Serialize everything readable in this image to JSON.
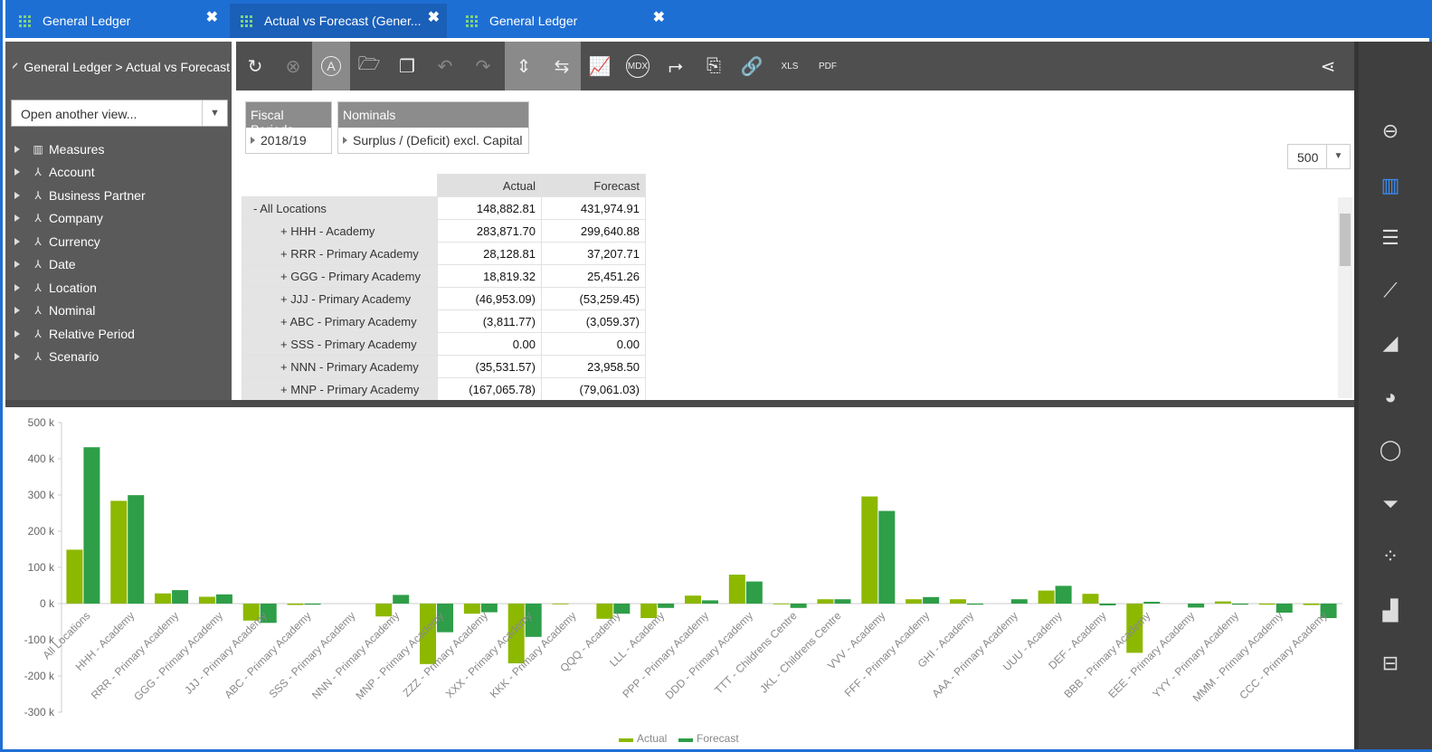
{
  "tabs": [
    {
      "label": "General Ledger",
      "close": "✖"
    },
    {
      "label": "Actual vs Forecast (Gener...",
      "close": "✖"
    },
    {
      "label": "General Ledger",
      "close": "✖"
    }
  ],
  "sidebar": {
    "breadcrumb": "General Ledger > Actual vs Forecast",
    "view_select_placeholder": "Open another view...",
    "dimensions": [
      {
        "label": "Measures",
        "icon": "measures-icon"
      },
      {
        "label": "Account",
        "icon": "hierarchy-icon"
      },
      {
        "label": "Business Partner",
        "icon": "hierarchy-icon"
      },
      {
        "label": "Company",
        "icon": "hierarchy-icon"
      },
      {
        "label": "Currency",
        "icon": "hierarchy-icon"
      },
      {
        "label": "Date",
        "icon": "hierarchy-icon"
      },
      {
        "label": "Location",
        "icon": "hierarchy-icon"
      },
      {
        "label": "Nominal",
        "icon": "hierarchy-icon"
      },
      {
        "label": "Relative Period",
        "icon": "hierarchy-icon"
      },
      {
        "label": "Scenario",
        "icon": "hierarchy-icon"
      }
    ]
  },
  "toolbar": {
    "mdx": "MDX",
    "xls": "XLS",
    "pdf": "PDF",
    "a": "A"
  },
  "filters": [
    {
      "header": "Fiscal Periods",
      "value": "2018/19"
    },
    {
      "header": "Nominals",
      "value": "Surplus / (Deficit) excl. Capital"
    }
  ],
  "page_size": "500",
  "table": {
    "columns": [
      "Actual",
      "Forecast"
    ],
    "rows": [
      {
        "label": "- All Locations",
        "actual": "148,882.81",
        "forecast": "431,974.91"
      },
      {
        "label": "+ HHH - Academy",
        "actual": "283,871.70",
        "forecast": "299,640.88"
      },
      {
        "label": "+ RRR - Primary Academy",
        "actual": "28,128.81",
        "forecast": "37,207.71"
      },
      {
        "label": "+ GGG - Primary Academy",
        "actual": "18,819.32",
        "forecast": "25,451.26"
      },
      {
        "label": "+ JJJ - Primary Academy",
        "actual": "(46,953.09)",
        "forecast": "(53,259.45)"
      },
      {
        "label": "+ ABC - Primary Academy",
        "actual": "(3,811.77)",
        "forecast": "(3,059.37)"
      },
      {
        "label": "+ SSS - Primary Academy",
        "actual": "0.00",
        "forecast": "0.00"
      },
      {
        "label": "+ NNN - Primary Academy",
        "actual": "(35,531.57)",
        "forecast": "23,958.50"
      },
      {
        "label": "+ MNP - Primary Academy",
        "actual": "(167,065.78)",
        "forecast": "(79,061.03)"
      }
    ]
  },
  "chart_data": {
    "type": "bar",
    "categories": [
      "All Locations",
      "HHH - Academy",
      "RRR - Primary Academy",
      "GGG - Primary Academy",
      "JJJ - Primary Academy",
      "ABC - Primary Academy",
      "SSS - Primary Academy",
      "NNN - Primary Academy",
      "MNP - Primary Academy",
      "ZZZ - Primary Academy",
      "XXX - Primary Academy",
      "KKK - Primary Academy",
      "QQQ - Academy",
      "LLL - Academy",
      "PPP - Primary Academy",
      "DDD - Primary Academy",
      "TTT - Childrens Centre",
      "JKL - Childrens Centre",
      "VVV - Academy",
      "FFF - Primary Academy",
      "GHI - Academy",
      "AAA - Primary Academy",
      "UUU - Academy",
      "DEF - Academy",
      "BBB - Primary Academy",
      "EEE - Primary Academy",
      "YYY - Primary Academy",
      "MMM - Primary Academy",
      "CCC - Primary Academy"
    ],
    "series": [
      {
        "name": "Actual",
        "color": "#8cb800",
        "values": [
          148882.81,
          283871.7,
          28128.81,
          18819.32,
          -46953.09,
          -3811.77,
          0,
          -35531.57,
          -167065.78,
          -28000,
          -165000,
          -2000,
          -42000,
          -40000,
          22000,
          80000,
          -2000,
          12000,
          296000,
          12000,
          12000,
          0,
          36000,
          27000,
          -136000,
          0,
          6000,
          -3000,
          -4000
        ]
      },
      {
        "name": "Forecast",
        "color": "#2e9e48",
        "values": [
          431974.91,
          299640.88,
          37207.71,
          25451.26,
          -53259.45,
          -3059.37,
          0,
          23958.5,
          -79061.03,
          -24000,
          -92000,
          0,
          -28000,
          -12000,
          9000,
          61000,
          -12000,
          12000,
          256000,
          18000,
          -3000,
          12000,
          49000,
          -5000,
          5000,
          -11000,
          -3000,
          -25000,
          -40000
        ]
      }
    ],
    "ylim": [
      -300000,
      500000
    ],
    "yticks": [
      "500 k",
      "400 k",
      "300 k",
      "200 k",
      "100 k",
      "0 k",
      "-100 k",
      "-200 k",
      "-300 k"
    ],
    "legend": "bottom",
    "grid": false
  }
}
